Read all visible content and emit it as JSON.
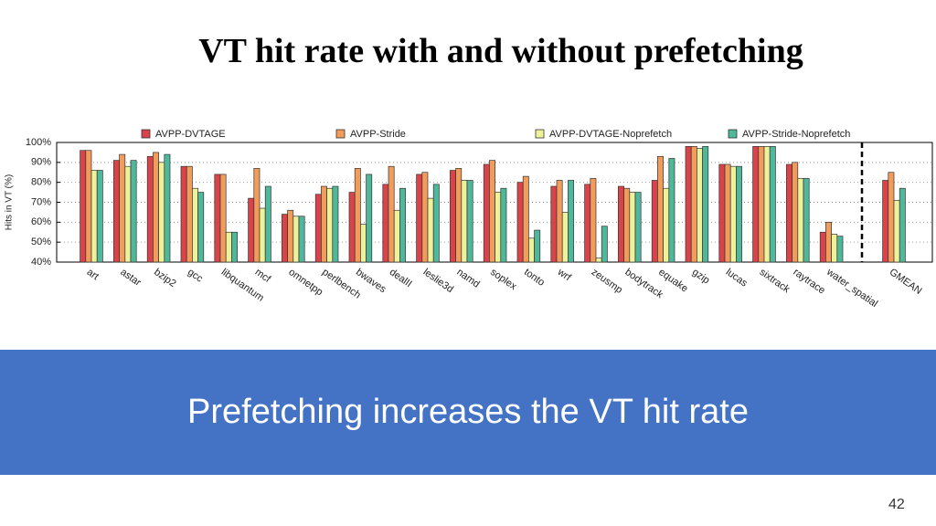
{
  "title": "VT hit rate with and without prefetching",
  "chart_data": {
    "type": "bar",
    "ylabel": "Hits in VT (%)",
    "categories": [
      "art",
      "astar",
      "bzip2",
      "gcc",
      "libquantum",
      "mcf",
      "omnetpp",
      "perlbench",
      "bwaves",
      "dealII",
      "leslie3d",
      "namd",
      "soplex",
      "tonto",
      "wrf",
      "zeusmp",
      "bodytrack",
      "equake",
      "gzip",
      "lucas",
      "sixtrack",
      "raytrace",
      "water_spatial",
      "GMEAN"
    ],
    "series": [
      {
        "name": "AVPP-DVTAGE",
        "color": "#d9434a",
        "values": [
          96,
          91,
          93,
          88,
          84,
          72,
          64,
          74,
          75,
          79,
          84,
          86,
          89,
          80,
          78,
          79,
          78,
          81,
          98,
          89,
          98,
          89,
          55,
          81
        ]
      },
      {
        "name": "AVPP-Stride",
        "color": "#f29c5c",
        "values": [
          96,
          94,
          95,
          88,
          84,
          87,
          66,
          78,
          87,
          88,
          85,
          87,
          91,
          83,
          81,
          82,
          77,
          93,
          98,
          89,
          98,
          90,
          60,
          85
        ]
      },
      {
        "name": "AVPP-DVTAGE-Noprefetch",
        "color": "#eef29a",
        "values": [
          86,
          88,
          90,
          77,
          55,
          67,
          63,
          77,
          59,
          66,
          72,
          81,
          75,
          52,
          65,
          42,
          75,
          77,
          97,
          88,
          98,
          82,
          54,
          71
        ]
      },
      {
        "name": "AVPP-Stride-Noprefetch",
        "color": "#4fb89a",
        "values": [
          86,
          91,
          94,
          75,
          55,
          78,
          63,
          78,
          84,
          77,
          79,
          81,
          77,
          56,
          81,
          58,
          75,
          92,
          98,
          88,
          98,
          82,
          53,
          77
        ]
      }
    ],
    "ylim": [
      40,
      100
    ],
    "yticks": [
      {
        "value": 40,
        "label": "40%"
      },
      {
        "value": 50,
        "label": "50%"
      },
      {
        "value": 60,
        "label": "60%"
      },
      {
        "value": 70,
        "label": "70%"
      },
      {
        "value": 80,
        "label": "80%"
      },
      {
        "value": 90,
        "label": "90%"
      },
      {
        "value": 100,
        "label": "100%"
      }
    ],
    "grid": true,
    "legend": "top"
  },
  "banner": "Prefetching increases the VT hit rate",
  "page_number": "42"
}
